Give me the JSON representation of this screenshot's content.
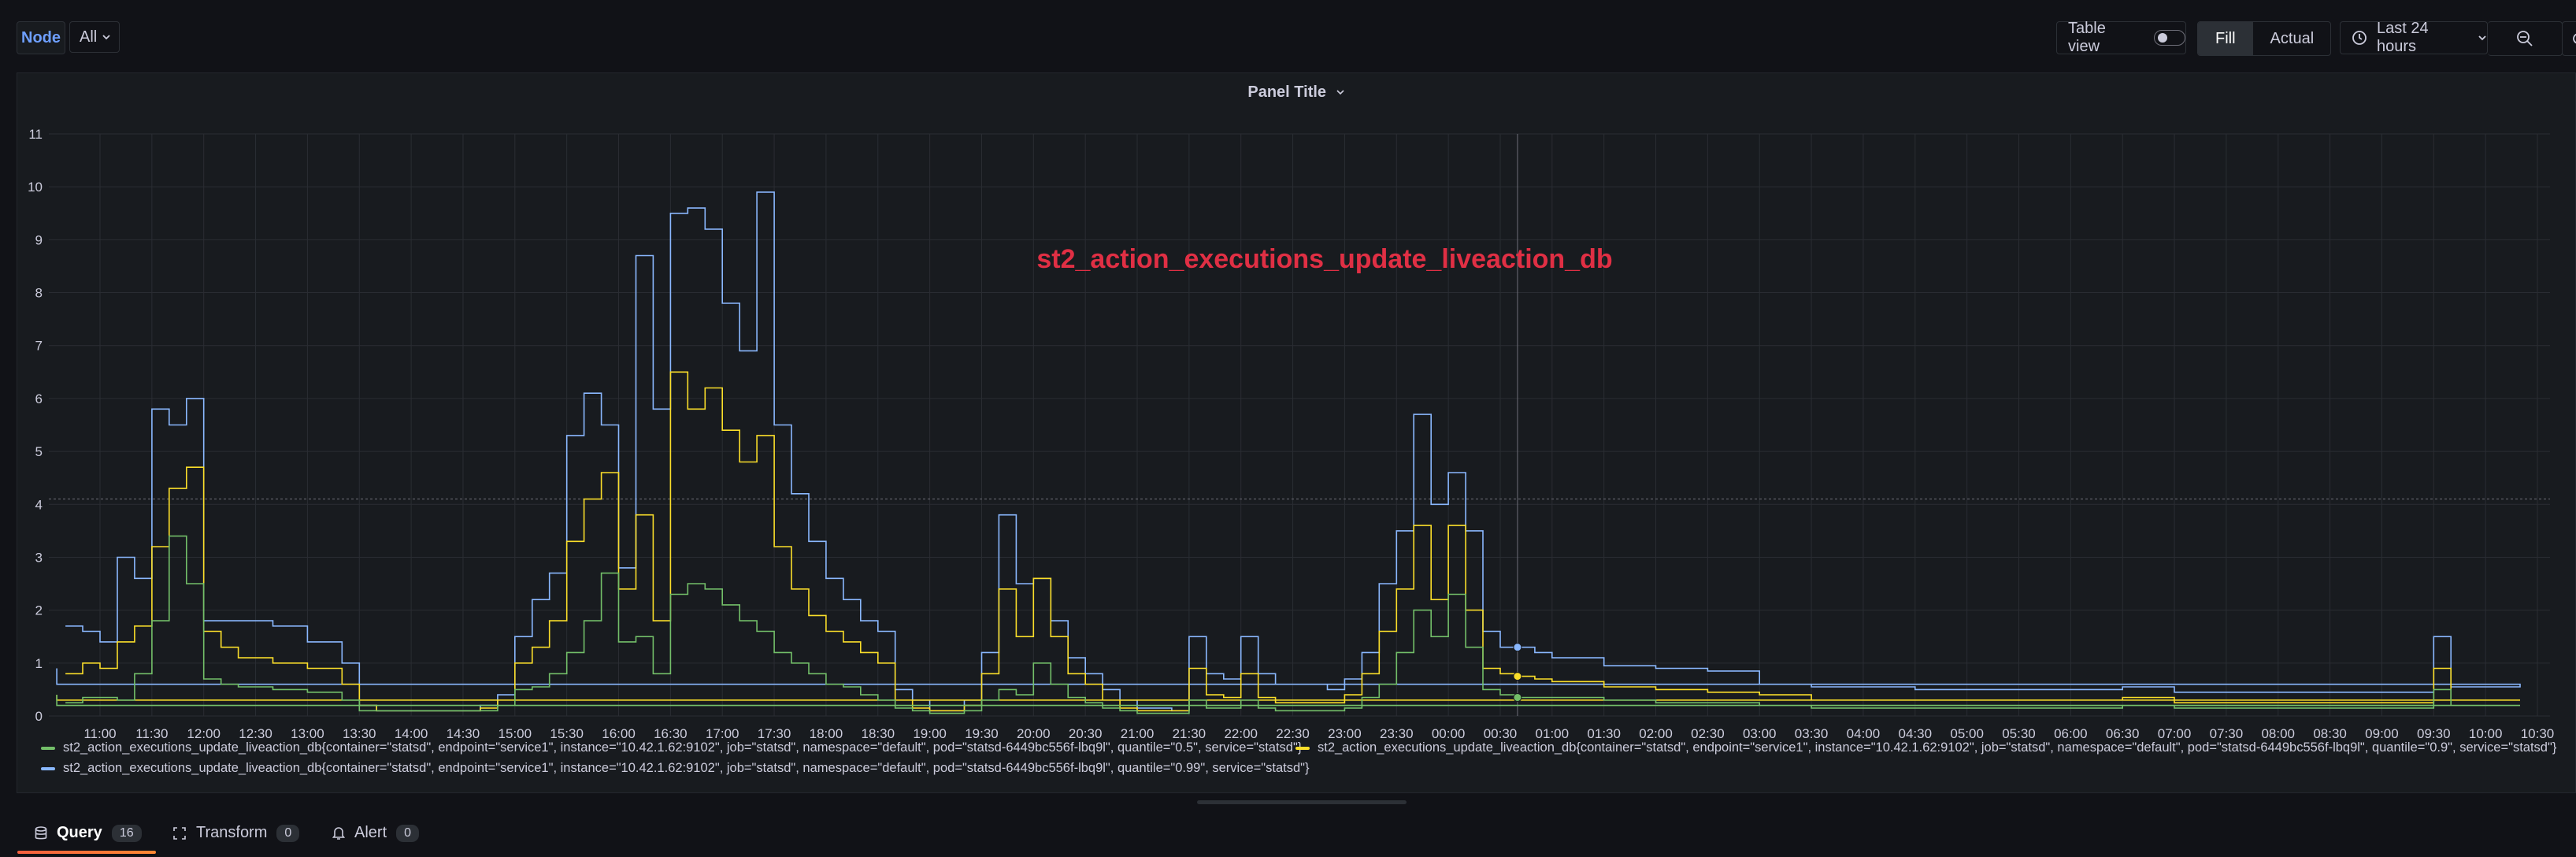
{
  "variables": {
    "node_label": "Node",
    "node_value": "All"
  },
  "toolbar": {
    "table_view_label": "Table view",
    "fill_label": "Fill",
    "actual_label": "Actual",
    "time_range": "Last 24 hours"
  },
  "panel": {
    "title": "Panel Title",
    "overlay_text": "st2_action_executions_update_liveaction_db"
  },
  "tabs": [
    {
      "label": "Query",
      "count": "16"
    },
    {
      "label": "Transform",
      "count": "0"
    },
    {
      "label": "Alert",
      "count": "0"
    }
  ],
  "colors": {
    "p50": "#73bf69",
    "p90": "#fade2a",
    "p99": "#8ab8ff",
    "accent": "#f55f3e",
    "overlay": "#e02f44"
  },
  "chart_data": {
    "type": "line",
    "title": "Panel Title",
    "xlabel": "",
    "ylabel": "",
    "ylim": [
      0,
      11
    ],
    "yticks": [
      0,
      1,
      2,
      3,
      4,
      5,
      6,
      7,
      8,
      9,
      10,
      11
    ],
    "xticks": [
      "11:00",
      "11:30",
      "12:00",
      "12:30",
      "13:00",
      "13:30",
      "14:00",
      "14:30",
      "15:00",
      "15:30",
      "16:00",
      "16:30",
      "17:00",
      "17:30",
      "18:00",
      "18:30",
      "19:00",
      "19:30",
      "20:00",
      "20:30",
      "21:00",
      "21:30",
      "22:00",
      "22:30",
      "23:00",
      "23:30",
      "00:00",
      "00:30",
      "01:00",
      "01:30",
      "02:00",
      "02:30",
      "03:00",
      "03:30",
      "04:00",
      "04:30",
      "05:00",
      "05:30",
      "06:00",
      "06:30",
      "07:00",
      "07:30",
      "08:00",
      "08:30",
      "09:00",
      "09:30",
      "10:00",
      "10:30"
    ],
    "grid": true,
    "legend_position": "bottom",
    "series": [
      {
        "name": "st2_action_executions_update_liveaction_db{container=\"statsd\", endpoint=\"service1\", instance=\"10.42.1.62:9102\", job=\"statsd\", namespace=\"default\", pod=\"statsd-6449bc556f-lbq9l\", quantile=\"0.5\", service=\"statsd\"}",
        "color": "#73bf69",
        "x": [
          "10:40",
          "10:50",
          "11:00",
          "11:10",
          "11:20",
          "11:30",
          "11:40",
          "11:50",
          "12:00",
          "12:10",
          "12:20",
          "12:40",
          "13:00",
          "13:20",
          "13:30",
          "13:40",
          "14:00",
          "14:20",
          "14:40",
          "14:50",
          "15:00",
          "15:10",
          "15:20",
          "15:30",
          "15:40",
          "15:50",
          "16:00",
          "16:10",
          "16:20",
          "16:30",
          "16:40",
          "16:50",
          "17:00",
          "17:10",
          "17:20",
          "17:30",
          "17:40",
          "17:50",
          "18:00",
          "18:10",
          "18:20",
          "18:30",
          "18:40",
          "18:50",
          "19:00",
          "19:10",
          "19:20",
          "19:30",
          "19:40",
          "19:50",
          "20:00",
          "20:10",
          "20:20",
          "20:30",
          "20:40",
          "20:50",
          "21:00",
          "21:10",
          "21:20",
          "21:30",
          "21:40",
          "21:50",
          "22:00",
          "22:10",
          "22:20",
          "22:30",
          "22:40",
          "22:50",
          "23:00",
          "23:10",
          "23:20",
          "23:30",
          "23:40",
          "23:50",
          "00:00",
          "00:10",
          "00:20",
          "00:30",
          "00:40",
          "00:50",
          "01:00",
          "01:30",
          "02:00",
          "02:30",
          "03:00",
          "03:30",
          "04:00",
          "04:30",
          "05:00",
          "05:30",
          "06:00",
          "06:30",
          "07:00",
          "07:30",
          "08:00",
          "08:30",
          "09:00",
          "09:20",
          "09:30",
          "09:40",
          "10:00",
          "10:20",
          "10:35"
        ],
        "y": [
          0.25,
          0.35,
          0.35,
          0.3,
          0.8,
          1.8,
          3.4,
          2.5,
          0.7,
          0.6,
          0.55,
          0.5,
          0.45,
          0.3,
          0.1,
          0.1,
          0.1,
          0.1,
          0.1,
          0.2,
          0.5,
          0.55,
          0.8,
          1.2,
          1.8,
          2.7,
          1.4,
          1.5,
          0.8,
          2.3,
          2.5,
          2.4,
          2.1,
          1.8,
          1.6,
          1.2,
          1.0,
          0.8,
          0.6,
          0.55,
          0.4,
          0.3,
          0.15,
          0.1,
          0.05,
          0.05,
          0.1,
          0.3,
          0.5,
          0.4,
          1.0,
          0.6,
          0.35,
          0.25,
          0.15,
          0.1,
          0.05,
          0.05,
          0.05,
          0.3,
          0.15,
          0.15,
          0.3,
          0.15,
          0.1,
          0.1,
          0.1,
          0.1,
          0.15,
          0.35,
          0.6,
          1.2,
          2.0,
          1.5,
          2.3,
          1.3,
          0.5,
          0.4,
          0.35,
          0.35,
          0.35,
          0.3,
          0.25,
          0.25,
          0.2,
          0.15,
          0.15,
          0.15,
          0.15,
          0.15,
          0.15,
          0.2,
          0.15,
          0.15,
          0.15,
          0.15,
          0.15,
          0.15,
          0.5,
          0.2,
          0.2,
          0.2,
          0.4
        ]
      },
      {
        "name": "st2_action_executions_update_liveaction_db{container=\"statsd\", endpoint=\"service1\", instance=\"10.42.1.62:9102\", job=\"statsd\", namespace=\"default\", pod=\"statsd-6449bc556f-lbq9l\", quantile=\"0.9\", service=\"statsd\"}",
        "color": "#fade2a",
        "x": [
          "10:40",
          "10:50",
          "11:00",
          "11:10",
          "11:20",
          "11:30",
          "11:40",
          "11:50",
          "12:00",
          "12:10",
          "12:20",
          "12:40",
          "13:00",
          "13:20",
          "13:30",
          "13:40",
          "14:00",
          "14:20",
          "14:40",
          "14:50",
          "15:00",
          "15:10",
          "15:20",
          "15:30",
          "15:40",
          "15:50",
          "16:00",
          "16:10",
          "16:20",
          "16:30",
          "16:40",
          "16:50",
          "17:00",
          "17:10",
          "17:20",
          "17:30",
          "17:40",
          "17:50",
          "18:00",
          "18:10",
          "18:20",
          "18:30",
          "18:40",
          "18:50",
          "19:00",
          "19:10",
          "19:20",
          "19:30",
          "19:40",
          "19:50",
          "20:00",
          "20:10",
          "20:20",
          "20:30",
          "20:40",
          "20:50",
          "21:00",
          "21:10",
          "21:20",
          "21:30",
          "21:40",
          "21:50",
          "22:00",
          "22:10",
          "22:20",
          "22:30",
          "22:40",
          "22:50",
          "23:00",
          "23:10",
          "23:20",
          "23:30",
          "23:40",
          "23:50",
          "00:00",
          "00:10",
          "00:20",
          "00:30",
          "00:40",
          "00:50",
          "01:00",
          "01:30",
          "02:00",
          "02:30",
          "03:00",
          "03:30",
          "04:00",
          "04:30",
          "05:00",
          "05:30",
          "06:00",
          "06:30",
          "07:00",
          "07:30",
          "08:00",
          "08:30",
          "09:00",
          "09:20",
          "09:30",
          "09:40",
          "10:00",
          "10:20",
          "10:35"
        ],
        "y": [
          0.8,
          1.0,
          0.9,
          1.4,
          1.7,
          3.2,
          4.3,
          4.7,
          1.6,
          1.3,
          1.1,
          1.0,
          0.9,
          0.6,
          0.2,
          0.1,
          0.1,
          0.1,
          0.15,
          0.3,
          1.0,
          1.3,
          1.8,
          3.3,
          4.1,
          4.6,
          2.4,
          3.8,
          1.8,
          6.5,
          5.8,
          6.2,
          5.4,
          4.8,
          5.3,
          3.2,
          2.4,
          1.9,
          1.6,
          1.4,
          1.2,
          1.0,
          0.3,
          0.15,
          0.1,
          0.1,
          0.2,
          0.8,
          2.4,
          1.5,
          2.6,
          1.5,
          0.8,
          0.6,
          0.3,
          0.15,
          0.1,
          0.1,
          0.1,
          0.9,
          0.4,
          0.35,
          0.8,
          0.35,
          0.25,
          0.25,
          0.25,
          0.25,
          0.4,
          0.8,
          1.6,
          2.4,
          3.6,
          2.2,
          3.6,
          2.0,
          0.9,
          0.8,
          0.75,
          0.7,
          0.65,
          0.55,
          0.5,
          0.45,
          0.4,
          0.3,
          0.3,
          0.3,
          0.3,
          0.3,
          0.3,
          0.35,
          0.25,
          0.25,
          0.25,
          0.25,
          0.25,
          0.25,
          0.9,
          0.3,
          0.3,
          0.3,
          0.4
        ]
      },
      {
        "name": "st2_action_executions_update_liveaction_db{container=\"statsd\", endpoint=\"service1\", instance=\"10.42.1.62:9102\", job=\"statsd\", namespace=\"default\", pod=\"statsd-6449bc556f-lbq9l\", quantile=\"0.99\", service=\"statsd\"}",
        "color": "#8ab8ff",
        "x": [
          "10:40",
          "10:50",
          "11:00",
          "11:10",
          "11:20",
          "11:30",
          "11:40",
          "11:50",
          "12:00",
          "12:10",
          "12:20",
          "12:40",
          "13:00",
          "13:20",
          "13:30",
          "13:40",
          "14:00",
          "14:20",
          "14:40",
          "14:50",
          "15:00",
          "15:10",
          "15:20",
          "15:30",
          "15:40",
          "15:50",
          "16:00",
          "16:10",
          "16:20",
          "16:30",
          "16:40",
          "16:50",
          "17:00",
          "17:10",
          "17:20",
          "17:30",
          "17:40",
          "17:50",
          "18:00",
          "18:10",
          "18:20",
          "18:30",
          "18:40",
          "18:50",
          "19:00",
          "19:10",
          "19:20",
          "19:30",
          "19:40",
          "19:50",
          "20:00",
          "20:10",
          "20:20",
          "20:30",
          "20:40",
          "20:50",
          "21:00",
          "21:10",
          "21:20",
          "21:30",
          "21:40",
          "21:50",
          "22:00",
          "22:10",
          "22:20",
          "22:30",
          "22:40",
          "22:50",
          "23:00",
          "23:10",
          "23:20",
          "23:30",
          "23:40",
          "23:50",
          "00:00",
          "00:10",
          "00:20",
          "00:30",
          "00:40",
          "00:50",
          "01:00",
          "01:30",
          "02:00",
          "02:30",
          "03:00",
          "03:30",
          "04:00",
          "04:30",
          "05:00",
          "05:30",
          "06:00",
          "06:30",
          "07:00",
          "07:30",
          "08:00",
          "08:30",
          "09:00",
          "09:20",
          "09:30",
          "09:40",
          "10:00",
          "10:20",
          "10:35"
        ],
        "y": [
          1.7,
          1.6,
          1.4,
          3.0,
          2.6,
          5.8,
          5.5,
          6.0,
          1.8,
          1.8,
          1.8,
          1.7,
          1.4,
          1.0,
          0.2,
          0.1,
          0.1,
          0.1,
          0.2,
          0.4,
          1.5,
          2.2,
          2.7,
          5.3,
          6.1,
          5.5,
          2.8,
          8.7,
          5.8,
          9.5,
          9.6,
          9.2,
          7.8,
          6.9,
          9.9,
          5.5,
          4.2,
          3.3,
          2.6,
          2.2,
          1.8,
          1.6,
          0.5,
          0.3,
          0.1,
          0.1,
          0.3,
          1.2,
          3.8,
          2.5,
          2.6,
          1.8,
          1.1,
          0.8,
          0.5,
          0.3,
          0.15,
          0.15,
          0.1,
          1.5,
          0.8,
          0.7,
          1.5,
          0.8,
          0.6,
          0.6,
          0.6,
          0.5,
          0.7,
          1.2,
          2.5,
          3.5,
          5.7,
          4.0,
          4.6,
          3.5,
          1.6,
          1.3,
          1.3,
          1.2,
          1.1,
          0.95,
          0.9,
          0.85,
          0.6,
          0.55,
          0.55,
          0.5,
          0.5,
          0.5,
          0.5,
          0.55,
          0.45,
          0.45,
          0.45,
          0.45,
          0.45,
          0.45,
          1.5,
          0.55,
          0.55,
          0.6,
          0.9
        ]
      }
    ]
  }
}
